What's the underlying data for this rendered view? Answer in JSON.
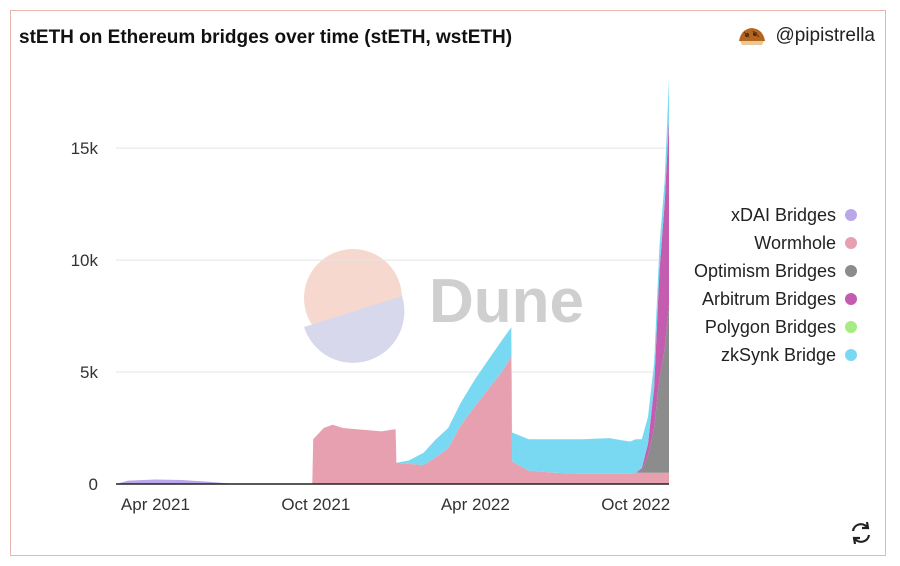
{
  "header": {
    "title": "stETH on Ethereum bridges over time (stETH, wstETH)",
    "author": "@pipistrella",
    "watermark": "Dune"
  },
  "icons": {
    "avatar": "avatar-icon",
    "refresh": "refresh-icon"
  },
  "colors": {
    "xdai": "#b9a7ea",
    "wormhole": "#e7a0b0",
    "optimism": "#8c8c8c",
    "arbitrum": "#c45db0",
    "polygon": "#a6ec82",
    "zksync": "#7ad9f2",
    "grid": "#e5e5e5",
    "watermark_pink": "#f7d8cf",
    "watermark_blue": "#d8d8ec",
    "watermark_text": "#cfcfcf"
  },
  "chart_data": {
    "type": "area",
    "stacked": true,
    "title": "stETH on Ethereum bridges over time (stETH, wstETH)",
    "xlabel": "",
    "ylabel": "",
    "x_domain": [
      "2021-02-15",
      "2022-11-08"
    ],
    "ylim": [
      0,
      18000
    ],
    "y_ticks": [
      0,
      5000,
      10000,
      15000
    ],
    "y_tick_labels": [
      "0",
      "5k",
      "10k",
      "15k"
    ],
    "x_ticks": [
      "2021-04-01",
      "2021-10-01",
      "2022-04-01",
      "2022-10-01"
    ],
    "x_tick_labels": [
      "Apr 2021",
      "Oct 2021",
      "Apr 2022",
      "Oct 2022"
    ],
    "legend_position": "right",
    "grid": true,
    "x": [
      "2021-02-15",
      "2021-03-01",
      "2021-04-01",
      "2021-05-01",
      "2021-06-01",
      "2021-07-01",
      "2021-08-01",
      "2021-09-01",
      "2021-09-27",
      "2021-09-28",
      "2021-10-10",
      "2021-10-20",
      "2021-11-01",
      "2021-11-15",
      "2021-12-01",
      "2021-12-15",
      "2021-12-31",
      "2022-01-01",
      "2022-01-15",
      "2022-02-01",
      "2022-02-15",
      "2022-03-01",
      "2022-03-15",
      "2022-04-01",
      "2022-04-15",
      "2022-05-01",
      "2022-05-12",
      "2022-05-13",
      "2022-06-01",
      "2022-07-01",
      "2022-08-01",
      "2022-09-01",
      "2022-09-15",
      "2022-09-25",
      "2022-10-01",
      "2022-10-08",
      "2022-10-15",
      "2022-10-22",
      "2022-10-28",
      "2022-11-03",
      "2022-11-08"
    ],
    "series": [
      {
        "name": "xDAI Bridges",
        "color_key": "xdai",
        "values": [
          0,
          150,
          200,
          180,
          100,
          0,
          0,
          0,
          0,
          0,
          0,
          0,
          0,
          0,
          0,
          0,
          0,
          0,
          0,
          0,
          0,
          0,
          0,
          0,
          0,
          0,
          0,
          0,
          0,
          0,
          0,
          0,
          0,
          0,
          0,
          0,
          0,
          0,
          0,
          0,
          0
        ]
      },
      {
        "name": "Wormhole",
        "color_key": "wormhole",
        "values": [
          0,
          0,
          0,
          0,
          0,
          0,
          0,
          0,
          0,
          2000,
          2500,
          2650,
          2500,
          2450,
          2400,
          2350,
          2450,
          950,
          900,
          850,
          1200,
          1600,
          2600,
          3500,
          4200,
          5000,
          5700,
          1000,
          600,
          500,
          450,
          450,
          450,
          450,
          500,
          500,
          500,
          500,
          500,
          500,
          500
        ]
      },
      {
        "name": "Optimism Bridges",
        "color_key": "optimism",
        "values": [
          0,
          0,
          0,
          0,
          0,
          0,
          0,
          0,
          0,
          0,
          0,
          0,
          0,
          0,
          0,
          0,
          0,
          0,
          0,
          0,
          0,
          0,
          0,
          0,
          0,
          0,
          0,
          0,
          0,
          0,
          0,
          0,
          0,
          0,
          0,
          100,
          800,
          2000,
          4200,
          5500,
          7500
        ]
      },
      {
        "name": "Arbitrum Bridges",
        "color_key": "arbitrum",
        "values": [
          0,
          0,
          0,
          0,
          0,
          0,
          0,
          0,
          0,
          0,
          0,
          0,
          0,
          0,
          0,
          0,
          0,
          0,
          0,
          0,
          0,
          0,
          0,
          0,
          0,
          0,
          0,
          0,
          0,
          0,
          0,
          0,
          0,
          0,
          0,
          100,
          500,
          1800,
          4800,
          6500,
          8300
        ]
      },
      {
        "name": "Polygon Bridges",
        "color_key": "polygon",
        "values": [
          0,
          0,
          0,
          0,
          0,
          0,
          0,
          0,
          0,
          0,
          0,
          0,
          0,
          0,
          0,
          0,
          0,
          0,
          0,
          0,
          0,
          0,
          0,
          0,
          0,
          0,
          0,
          0,
          0,
          0,
          0,
          0,
          0,
          0,
          0,
          0,
          0,
          0,
          0,
          0,
          0
        ]
      },
      {
        "name": "zkSynk Bridge",
        "color_key": "zksync",
        "values": [
          0,
          0,
          0,
          0,
          0,
          0,
          0,
          0,
          0,
          0,
          0,
          0,
          0,
          0,
          0,
          0,
          0,
          0,
          150,
          550,
          800,
          900,
          1000,
          1200,
          1300,
          1400,
          1300,
          1300,
          1400,
          1500,
          1550,
          1600,
          1500,
          1450,
          1500,
          1300,
          1200,
          1100,
          1100,
          1000,
          1800
        ]
      }
    ]
  }
}
